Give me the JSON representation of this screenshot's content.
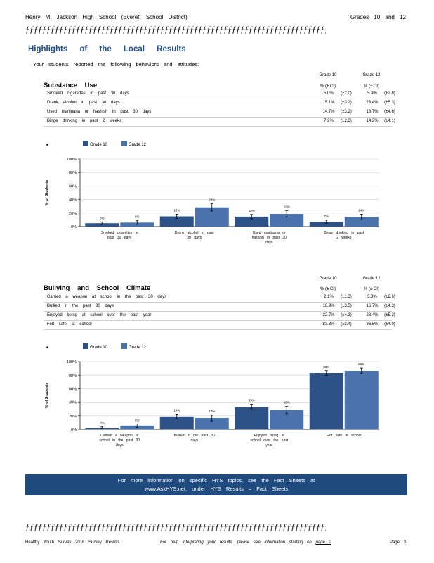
{
  "header": {
    "school": "Henry M. Jackson High School (Everett School District)",
    "grades": "Grades 10 and 12"
  },
  "decor": {
    "line": "ƒƒƒƒƒƒƒƒƒƒƒƒƒƒƒƒƒƒƒƒƒƒƒƒƒƒƒƒƒƒƒƒƒƒƒƒƒƒƒƒƒƒƒƒƒƒƒƒƒƒƒƒƒƒƒƒƒƒƒƒƒƒƒƒƒƒƒƒƒƒƒƒƒƒƒƒƒƒƒƒ"
  },
  "title": "Highlights of the Local Results",
  "intro": "Your students reported the following behaviors and attitudes:",
  "substance": {
    "heading": "Substance Use",
    "col_g10": "Grade 10",
    "col_g12": "Grade 12",
    "col_sub": "% (± CI)",
    "rows": [
      {
        "label": "Smoked cigarettes in past 30 days",
        "g10": "5.0%",
        "g10ci": "(±2.0)",
        "g12": "5.9%",
        "g12ci": "(±2.8)"
      },
      {
        "label": "Drank alcohol in past 30 days",
        "g10": "15.1%",
        "g10ci": "(±3.2)",
        "g12": "28.4%",
        "g12ci": "(±5.3)"
      },
      {
        "label": "Used marijuana or hashish in past 30 days",
        "g10": "14.7%",
        "g10ci": "(±3.2)",
        "g12": "18.7%",
        "g12ci": "(±4.6)"
      },
      {
        "label": "Binge drinking in past 2 weeks",
        "g10": "7.2%",
        "g10ci": "(±2.3)",
        "g12": "14.2%",
        "g12ci": "(±4.1)"
      }
    ]
  },
  "bullying": {
    "heading": "Bullying and School Climate",
    "col_g10": "Grade 10",
    "col_g12": "Grade 12",
    "col_sub": "% (± CI)",
    "rows": [
      {
        "label": "Carried a weapon at school in the past 30 days",
        "g10": "2.1%",
        "g10ci": "(±1.3)",
        "g12": "5.3%",
        "g12ci": "(±2.6)"
      },
      {
        "label": "Bullied in the past 30 days",
        "g10": "18.9%",
        "g10ci": "(±3.5)",
        "g12": "16.7%",
        "g12ci": "(±4.3)"
      },
      {
        "label": "Enjoyed being at school over the past year",
        "g10": "32.7%",
        "g10ci": "(±4.3)",
        "g12": "28.4%",
        "g12ci": "(±5.3)"
      },
      {
        "label": "Felt safe at school",
        "g10": "83.3%",
        "g10ci": "(±3.4)",
        "g12": "86.5%",
        "g12ci": "(±4.0)"
      }
    ]
  },
  "chart_data": [
    {
      "type": "bar",
      "ylabel": "% of Students",
      "ylim": [
        0,
        100
      ],
      "yticks": [
        "0%",
        "20%",
        "40%",
        "60%",
        "80%",
        "100%"
      ],
      "grid": true,
      "legend": "top-left",
      "legend_marker": "■",
      "categories": [
        "Smoked cigarettes in past 30 days",
        "Drank alcohol in past 30 days",
        "Used marijuana or hashish in past 30 days",
        "Binge drinking in past 2 weeks"
      ],
      "series": [
        {
          "name": "Grade 10",
          "color": "#2e5286",
          "values": [
            5.0,
            15.1,
            14.7,
            7.2
          ],
          "ci": [
            2.0,
            3.2,
            3.2,
            2.3
          ],
          "labels": [
            "5%",
            "15%",
            "15%",
            "7%"
          ]
        },
        {
          "name": "Grade 12",
          "color": "#4a72ad",
          "values": [
            5.9,
            28.4,
            18.7,
            14.2
          ],
          "ci": [
            2.8,
            5.3,
            4.6,
            4.1
          ],
          "labels": [
            "6%",
            "28%",
            "19%",
            "14%"
          ]
        }
      ]
    },
    {
      "type": "bar",
      "ylabel": "% of Students",
      "ylim": [
        0,
        100
      ],
      "yticks": [
        "0%",
        "20%",
        "40%",
        "60%",
        "80%",
        "100%"
      ],
      "grid": true,
      "legend": "top-left",
      "legend_marker": "■",
      "categories": [
        "Carried a weapon at school in the past 30 days",
        "Bullied in the past 30 days",
        "Enjoyed being at school over the past year",
        "Felt safe at school"
      ],
      "series": [
        {
          "name": "Grade 10",
          "color": "#2e5286",
          "values": [
            2.1,
            18.9,
            32.7,
            83.3
          ],
          "ci": [
            1.3,
            3.5,
            4.3,
            3.4
          ],
          "labels": [
            "2%",
            "19%",
            "33%",
            "83%"
          ]
        },
        {
          "name": "Grade 12",
          "color": "#4a72ad",
          "values": [
            5.3,
            16.7,
            28.4,
            86.5
          ],
          "ci": [
            2.6,
            4.3,
            5.3,
            4.0
          ],
          "labels": [
            "5%",
            "17%",
            "28%",
            "86%"
          ]
        }
      ]
    }
  ],
  "banner": {
    "line1": "For more information on specific HYS topics, see the Fact Sheets at",
    "line2": "www.AskHYS.net, under HYS Results – Fact Sheets"
  },
  "footer": {
    "left": "Healthy Youth Survey 2016 Survey Results",
    "mid": "For help interpreting your results, please see information starting on",
    "mid_link": "page 2",
    "page": "Page 3"
  }
}
